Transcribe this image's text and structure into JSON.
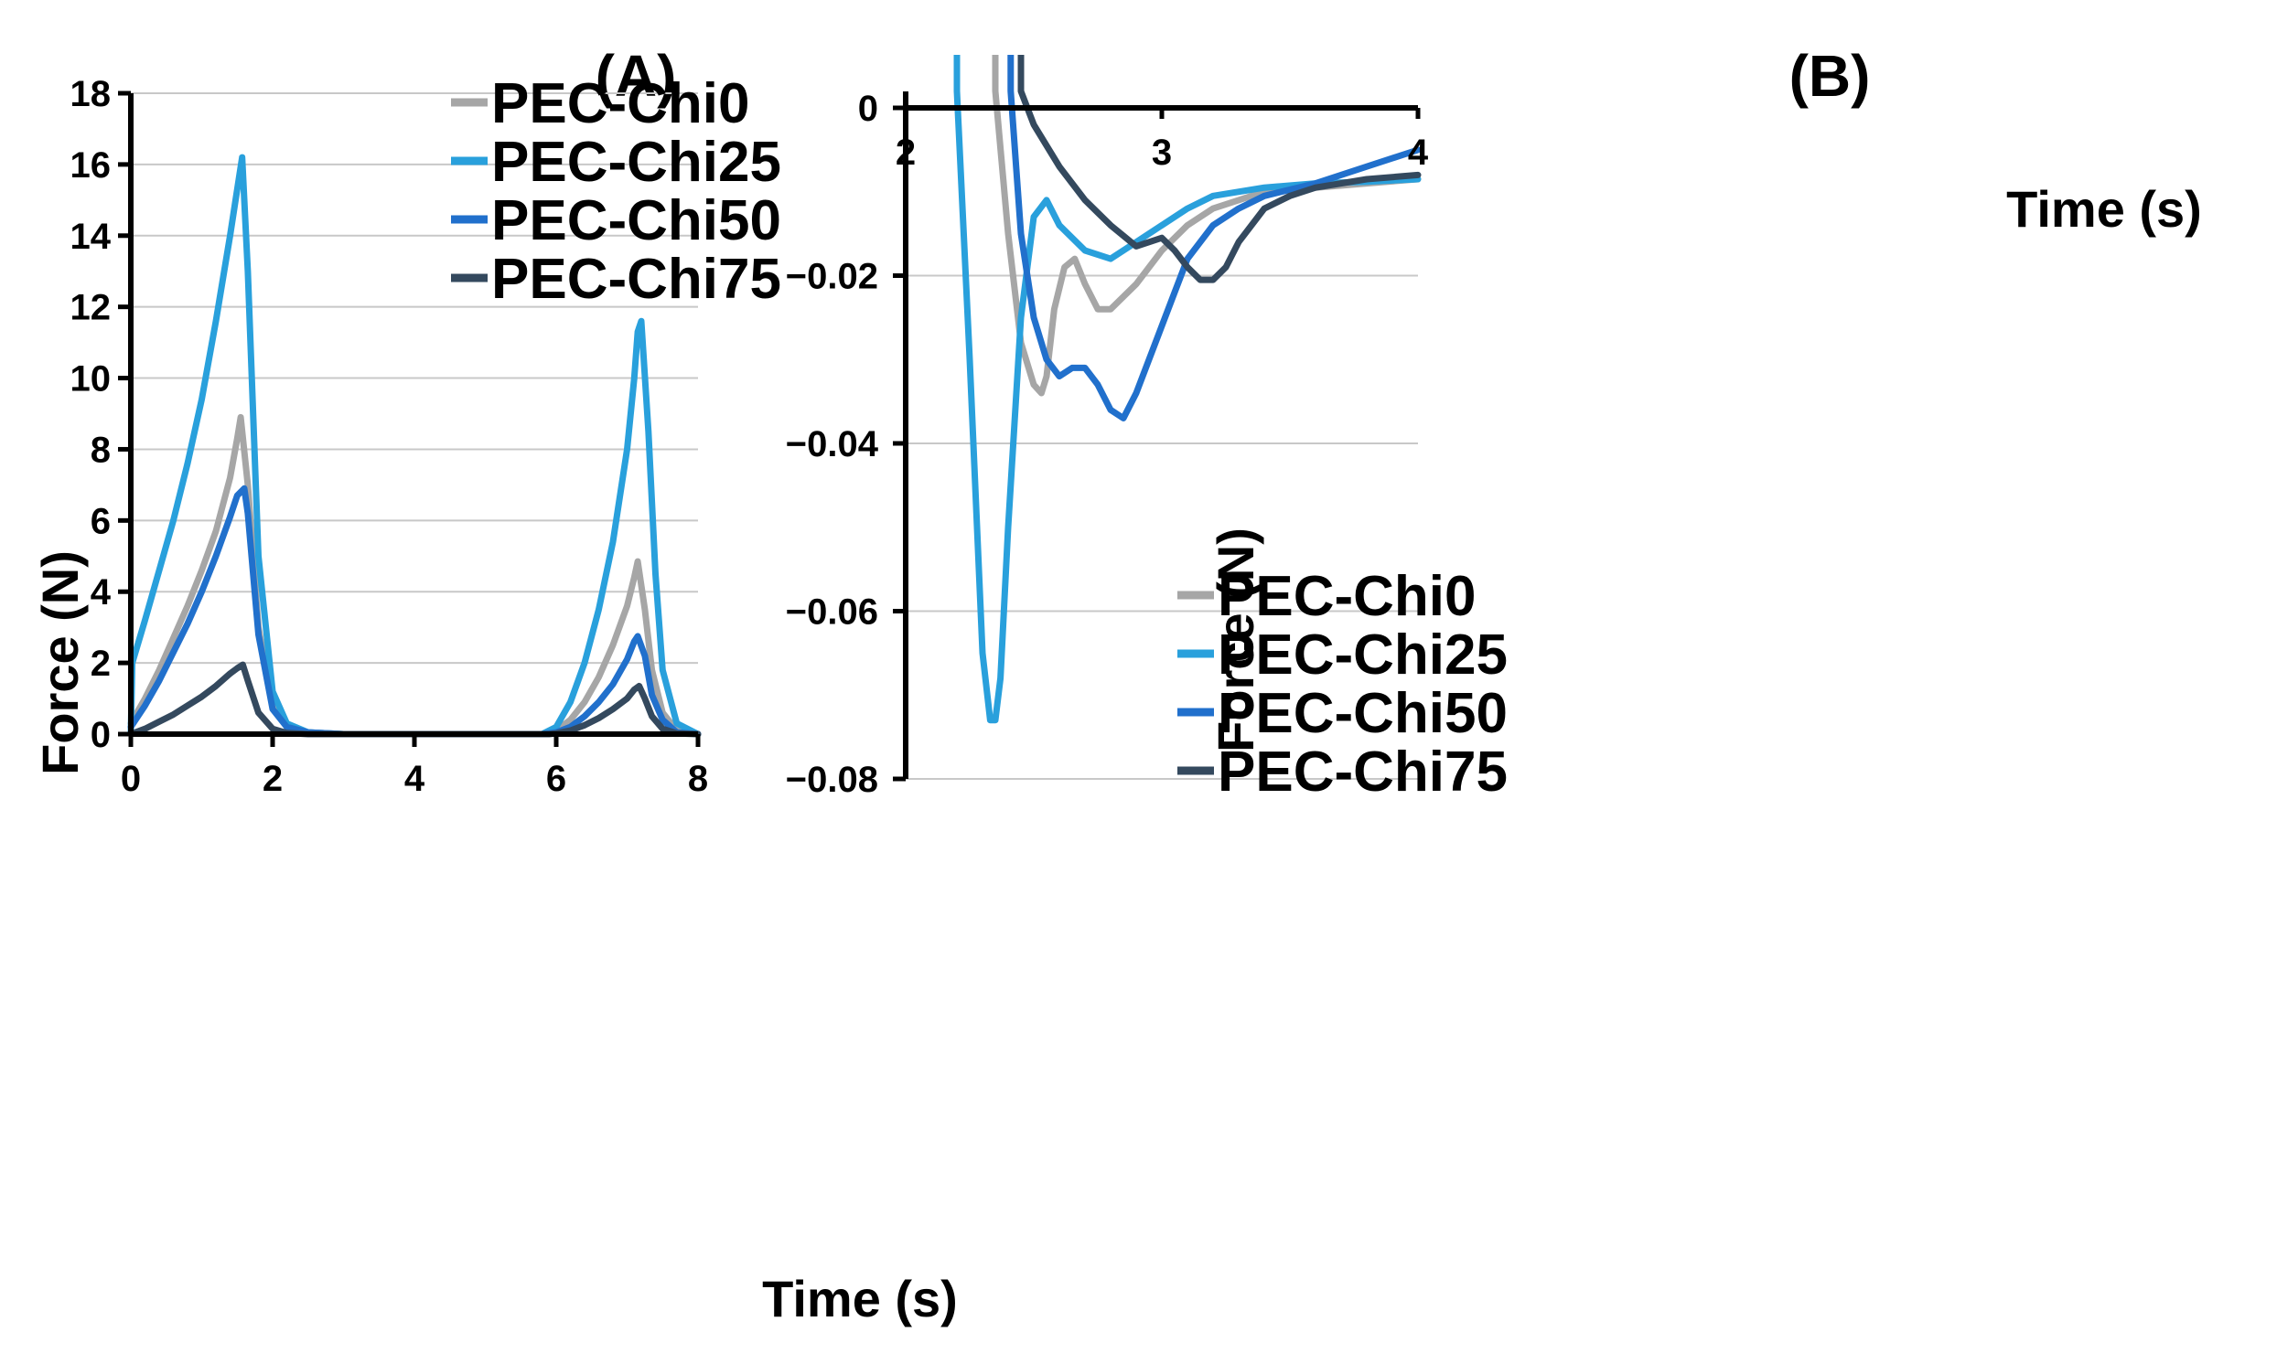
{
  "chart_data": [
    {
      "type": "line",
      "title": "(A)",
      "xlabel": "Time (s)",
      "ylabel": "Force (N)",
      "xlim": [
        0,
        8
      ],
      "ylim": [
        0,
        18
      ],
      "xticks": [
        0,
        2,
        4,
        6,
        8
      ],
      "yticks": [
        0,
        2,
        4,
        6,
        8,
        10,
        12,
        14,
        16,
        18
      ],
      "grid": true,
      "legend_position": "top-right",
      "series": [
        {
          "name": "PEC-Chi0",
          "color": "#a6a6a6",
          "x": [
            0,
            0.2,
            0.4,
            0.6,
            0.8,
            1.0,
            1.2,
            1.4,
            1.5,
            1.55,
            1.65,
            1.8,
            2.0,
            2.2,
            2.5,
            3.0,
            4.0,
            5.0,
            5.8,
            6.0,
            6.2,
            6.4,
            6.6,
            6.8,
            7.0,
            7.1,
            7.15,
            7.25,
            7.35,
            7.5,
            7.7,
            8.0
          ],
          "y": [
            0.3,
            1.0,
            1.8,
            2.7,
            3.6,
            4.6,
            5.7,
            7.2,
            8.3,
            8.9,
            7.0,
            3.0,
            0.8,
            0.2,
            0.05,
            0,
            0,
            0,
            0,
            0.1,
            0.4,
            0.9,
            1.6,
            2.5,
            3.6,
            4.4,
            4.85,
            3.5,
            1.8,
            0.6,
            0.1,
            0
          ]
        },
        {
          "name": "PEC-Chi25",
          "color": "#29a0dc",
          "x": [
            0,
            0.02,
            0.2,
            0.4,
            0.6,
            0.8,
            1.0,
            1.2,
            1.4,
            1.5,
            1.57,
            1.65,
            1.8,
            2.0,
            2.2,
            2.5,
            3.0,
            4.0,
            5.0,
            5.8,
            6.0,
            6.2,
            6.4,
            6.6,
            6.8,
            7.0,
            7.1,
            7.15,
            7.2,
            7.3,
            7.4,
            7.5,
            7.7,
            8.0
          ],
          "y": [
            0,
            2.0,
            3.2,
            4.6,
            6.0,
            7.6,
            9.4,
            11.6,
            14.0,
            15.3,
            16.2,
            13.0,
            5.0,
            1.2,
            0.3,
            0.05,
            0,
            0,
            0,
            0,
            0.2,
            0.9,
            2.0,
            3.5,
            5.4,
            8.0,
            10.0,
            11.3,
            11.6,
            8.5,
            4.5,
            1.8,
            0.3,
            0
          ]
        },
        {
          "name": "PEC-Chi50",
          "color": "#2170cc",
          "x": [
            0,
            0.2,
            0.4,
            0.6,
            0.8,
            1.0,
            1.2,
            1.4,
            1.5,
            1.6,
            1.65,
            1.8,
            2.0,
            2.2,
            2.5,
            3.0,
            4.0,
            5.0,
            5.8,
            6.0,
            6.2,
            6.4,
            6.6,
            6.8,
            7.0,
            7.1,
            7.15,
            7.25,
            7.35,
            7.5,
            7.7,
            8.0
          ],
          "y": [
            0.2,
            0.8,
            1.5,
            2.3,
            3.1,
            4.0,
            5.0,
            6.1,
            6.7,
            6.9,
            6.2,
            2.8,
            0.7,
            0.2,
            0.05,
            0,
            0,
            0,
            0,
            0.05,
            0.2,
            0.5,
            0.9,
            1.4,
            2.1,
            2.6,
            2.75,
            2.2,
            1.1,
            0.4,
            0.05,
            0
          ]
        },
        {
          "name": "PEC-Chi75",
          "color": "#34495e",
          "x": [
            0,
            0.2,
            0.4,
            0.6,
            0.8,
            1.0,
            1.2,
            1.4,
            1.5,
            1.58,
            1.65,
            1.8,
            2.0,
            2.2,
            2.5,
            3.0,
            4.0,
            5.0,
            5.9,
            6.0,
            6.2,
            6.4,
            6.6,
            6.8,
            7.0,
            7.1,
            7.17,
            7.25,
            7.35,
            7.5,
            7.7,
            8.0
          ],
          "y": [
            0,
            0.15,
            0.35,
            0.55,
            0.8,
            1.05,
            1.35,
            1.7,
            1.85,
            1.95,
            1.5,
            0.6,
            0.15,
            0.03,
            0,
            0,
            0,
            0,
            0,
            0.02,
            0.1,
            0.25,
            0.45,
            0.7,
            1.0,
            1.25,
            1.35,
            1.0,
            0.5,
            0.15,
            0.02,
            0
          ]
        }
      ]
    },
    {
      "type": "line",
      "title": "(B)",
      "xlabel": "Time (s)",
      "ylabel": "Force (N)",
      "xlim": [
        2,
        4
      ],
      "ylim": [
        -0.08,
        0
      ],
      "xticks": [
        2,
        3,
        4
      ],
      "yticks": [
        0,
        -0.02,
        -0.04,
        -0.06,
        -0.08
      ],
      "xtick_labels": [
        "2",
        "3",
        "4"
      ],
      "ytick_labels": [
        "0",
        "−0.02",
        "−0.04",
        "−0.06",
        "−0.08"
      ],
      "grid": true,
      "legend_position": "bottom-right",
      "series": [
        {
          "name": "PEC-Chi0",
          "color": "#a6a6a6",
          "x": [
            2.35,
            2.4,
            2.45,
            2.5,
            2.53,
            2.55,
            2.58,
            2.62,
            2.66,
            2.7,
            2.75,
            2.8,
            2.9,
            3.0,
            3.1,
            3.2,
            3.4,
            3.6,
            3.8,
            4.0
          ],
          "y": [
            0.002,
            -0.015,
            -0.028,
            -0.033,
            -0.034,
            -0.032,
            -0.024,
            -0.019,
            -0.018,
            -0.021,
            -0.024,
            -0.024,
            -0.021,
            -0.017,
            -0.014,
            -0.012,
            -0.01,
            -0.0095,
            -0.009,
            -0.0085
          ]
        },
        {
          "name": "PEC-Chi25",
          "color": "#29a0dc",
          "x": [
            2.2,
            2.25,
            2.3,
            2.33,
            2.35,
            2.37,
            2.4,
            2.45,
            2.5,
            2.55,
            2.6,
            2.7,
            2.8,
            2.9,
            3.0,
            3.1,
            3.2,
            3.4,
            3.6,
            3.8,
            4.0
          ],
          "y": [
            0.002,
            -0.03,
            -0.065,
            -0.073,
            -0.073,
            -0.068,
            -0.05,
            -0.025,
            -0.013,
            -0.011,
            -0.014,
            -0.017,
            -0.018,
            -0.016,
            -0.014,
            -0.012,
            -0.0105,
            -0.0095,
            -0.009,
            -0.0088,
            -0.0085
          ]
        },
        {
          "name": "PEC-Chi50",
          "color": "#2170cc",
          "x": [
            2.41,
            2.45,
            2.5,
            2.55,
            2.6,
            2.65,
            2.7,
            2.75,
            2.8,
            2.85,
            2.9,
            2.95,
            3.0,
            3.05,
            3.1,
            3.2,
            3.3,
            3.4,
            3.6,
            3.8,
            4.0
          ],
          "y": [
            0.002,
            -0.015,
            -0.025,
            -0.03,
            -0.032,
            -0.031,
            -0.031,
            -0.033,
            -0.036,
            -0.037,
            -0.034,
            -0.03,
            -0.026,
            -0.022,
            -0.018,
            -0.014,
            -0.012,
            -0.0105,
            -0.009,
            -0.007,
            -0.005
          ]
        },
        {
          "name": "PEC-Chi75",
          "color": "#34495e",
          "x": [
            2.45,
            2.5,
            2.6,
            2.7,
            2.8,
            2.9,
            2.95,
            3.0,
            3.05,
            3.1,
            3.15,
            3.2,
            3.25,
            3.3,
            3.4,
            3.5,
            3.6,
            3.8,
            4.0
          ],
          "y": [
            0.002,
            -0.002,
            -0.007,
            -0.011,
            -0.014,
            -0.0165,
            -0.016,
            -0.0155,
            -0.017,
            -0.019,
            -0.0205,
            -0.0205,
            -0.019,
            -0.016,
            -0.012,
            -0.0105,
            -0.0095,
            -0.0085,
            -0.008
          ]
        }
      ]
    }
  ]
}
